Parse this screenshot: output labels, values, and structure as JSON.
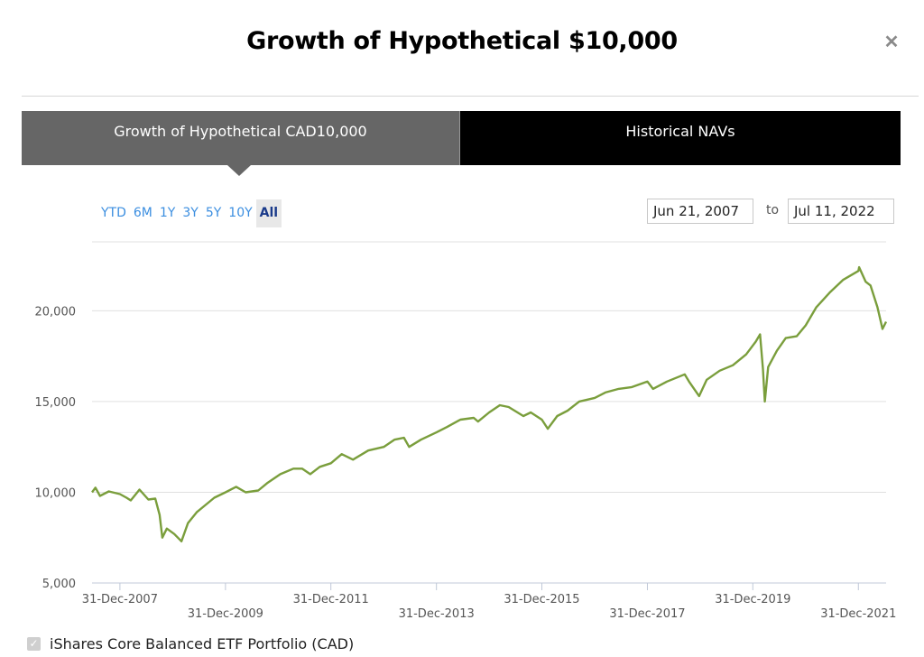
{
  "dialog": {
    "title": "Growth of Hypothetical $10,000",
    "close_icon": "close-icon"
  },
  "tabs": [
    {
      "label": "Growth of Hypothetical CAD10,000",
      "active": true
    },
    {
      "label": "Historical NAVs",
      "active": false
    }
  ],
  "ranges": [
    "YTD",
    "6M",
    "1Y",
    "3Y",
    "5Y",
    "10Y",
    "All"
  ],
  "selected_range": "All",
  "date_range": {
    "from": "Jun 21, 2007",
    "to_label": "to",
    "to": "Jul 11, 2022"
  },
  "legend": {
    "label": "iShares Core Balanced ETF Portfolio (CAD)",
    "checked": true
  },
  "colors": {
    "line": "#7a9e3c",
    "active_tab": "#666666",
    "inactive_tab": "#000000",
    "range_link": "#3b8ee0"
  },
  "chart_data": {
    "type": "line",
    "title": "",
    "xlabel": "",
    "ylabel": "",
    "ylim": [
      5000,
      23800
    ],
    "xlim": [
      "2007-06-21",
      "2022-07-11"
    ],
    "yticks": [
      5000,
      10000,
      15000,
      20000
    ],
    "ytick_labels": [
      "5,000",
      "10,000",
      "15,000",
      "20,000"
    ],
    "xticks": [
      "2007-12-31",
      "2009-12-31",
      "2011-12-31",
      "2013-12-31",
      "2015-12-31",
      "2017-12-31",
      "2019-12-31",
      "2021-12-31"
    ],
    "xtick_labels": [
      "31-Dec-2007",
      "31-Dec-2009",
      "31-Dec-2011",
      "31-Dec-2013",
      "31-Dec-2015",
      "31-Dec-2017",
      "31-Dec-2019",
      "31-Dec-2021"
    ],
    "grid": true,
    "series": [
      {
        "name": "iShares Core Balanced ETF Portfolio (CAD)",
        "points": [
          [
            "2007-06-21",
            10000
          ],
          [
            "2007-07-15",
            10250
          ],
          [
            "2007-08-15",
            9800
          ],
          [
            "2007-10-15",
            10050
          ],
          [
            "2007-12-31",
            9900
          ],
          [
            "2008-02-15",
            9700
          ],
          [
            "2008-03-15",
            9550
          ],
          [
            "2008-05-15",
            10150
          ],
          [
            "2008-07-15",
            9600
          ],
          [
            "2008-09-01",
            9650
          ],
          [
            "2008-10-01",
            8750
          ],
          [
            "2008-10-20",
            7500
          ],
          [
            "2008-11-20",
            8000
          ],
          [
            "2009-01-10",
            7700
          ],
          [
            "2009-03-01",
            7300
          ],
          [
            "2009-04-15",
            8300
          ],
          [
            "2009-06-15",
            8900
          ],
          [
            "2009-08-15",
            9300
          ],
          [
            "2009-10-15",
            9700
          ],
          [
            "2009-12-31",
            10000
          ],
          [
            "2010-03-15",
            10300
          ],
          [
            "2010-05-20",
            10000
          ],
          [
            "2010-08-15",
            10100
          ],
          [
            "2010-10-15",
            10500
          ],
          [
            "2011-01-15",
            11000
          ],
          [
            "2011-04-15",
            11300
          ],
          [
            "2011-06-15",
            11300
          ],
          [
            "2011-08-10",
            11000
          ],
          [
            "2011-10-15",
            11400
          ],
          [
            "2011-12-31",
            11600
          ],
          [
            "2012-03-15",
            12100
          ],
          [
            "2012-06-01",
            11800
          ],
          [
            "2012-09-15",
            12300
          ],
          [
            "2012-12-31",
            12500
          ],
          [
            "2013-03-15",
            12900
          ],
          [
            "2013-05-20",
            13000
          ],
          [
            "2013-06-25",
            12500
          ],
          [
            "2013-09-15",
            12900
          ],
          [
            "2013-12-31",
            13300
          ],
          [
            "2014-03-15",
            13600
          ],
          [
            "2014-06-15",
            14000
          ],
          [
            "2014-09-15",
            14100
          ],
          [
            "2014-10-15",
            13900
          ],
          [
            "2014-12-31",
            14400
          ],
          [
            "2015-03-15",
            14800
          ],
          [
            "2015-05-15",
            14700
          ],
          [
            "2015-08-25",
            14200
          ],
          [
            "2015-10-15",
            14400
          ],
          [
            "2015-12-31",
            14000
          ],
          [
            "2016-02-10",
            13500
          ],
          [
            "2016-04-15",
            14200
          ],
          [
            "2016-06-27",
            14500
          ],
          [
            "2016-09-15",
            15000
          ],
          [
            "2016-12-31",
            15200
          ],
          [
            "2017-03-15",
            15500
          ],
          [
            "2017-06-15",
            15700
          ],
          [
            "2017-09-15",
            15800
          ],
          [
            "2017-12-31",
            16100
          ],
          [
            "2018-02-08",
            15700
          ],
          [
            "2018-05-15",
            16100
          ],
          [
            "2018-09-15",
            16500
          ],
          [
            "2018-10-15",
            16100
          ],
          [
            "2018-12-24",
            15300
          ],
          [
            "2019-02-15",
            16200
          ],
          [
            "2019-05-15",
            16700
          ],
          [
            "2019-08-15",
            17000
          ],
          [
            "2019-11-15",
            17600
          ],
          [
            "2020-01-20",
            18300
          ],
          [
            "2020-02-19",
            18700
          ],
          [
            "2020-03-10",
            16800
          ],
          [
            "2020-03-23",
            15000
          ],
          [
            "2020-04-15",
            16900
          ],
          [
            "2020-06-15",
            17800
          ],
          [
            "2020-08-15",
            18500
          ],
          [
            "2020-10-30",
            18600
          ],
          [
            "2020-12-31",
            19200
          ],
          [
            "2021-03-15",
            20200
          ],
          [
            "2021-06-15",
            21000
          ],
          [
            "2021-09-15",
            21700
          ],
          [
            "2021-12-31",
            22200
          ],
          [
            "2022-01-05",
            22400
          ],
          [
            "2022-02-20",
            21600
          ],
          [
            "2022-03-25",
            21400
          ],
          [
            "2022-05-12",
            20200
          ],
          [
            "2022-06-16",
            19000
          ],
          [
            "2022-07-11",
            19400
          ]
        ]
      }
    ]
  }
}
